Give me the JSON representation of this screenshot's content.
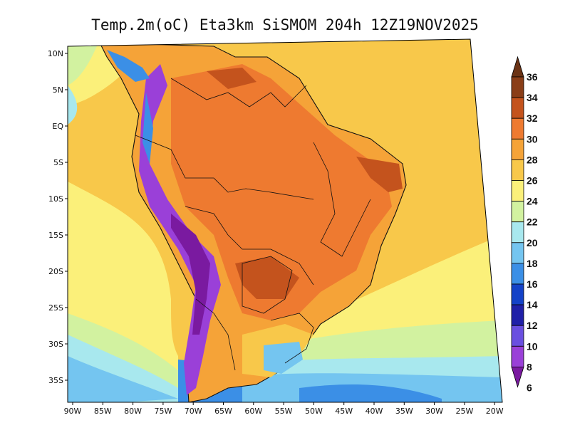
{
  "title": "Temp.2m(oC) Eta3km SiSMOM 204h 12Z19NOV2025",
  "variable": "Temp.2m",
  "units": "oC",
  "model": "Eta3km SiSMOM",
  "forecast_hour": "204h",
  "valid_time": "12Z19NOV2025",
  "lon_ticks": [
    "90W",
    "85W",
    "80W",
    "75W",
    "70W",
    "65W",
    "60W",
    "55W",
    "50W",
    "45W",
    "40W",
    "35W",
    "30W",
    "25W",
    "20W"
  ],
  "lat_ticks": [
    "10N",
    "5N",
    "EQ",
    "5S",
    "10S",
    "15S",
    "20S",
    "25S",
    "30S",
    "35S"
  ],
  "colorbar": {
    "labels": [
      "36",
      "34",
      "32",
      "30",
      "28",
      "26",
      "24",
      "22",
      "20",
      "18",
      "16",
      "14",
      "12",
      "10",
      "8",
      "6"
    ],
    "colors": [
      "#6b3315",
      "#8a3e18",
      "#c4531d",
      "#ee7a30",
      "#f5a338",
      "#f8c84a",
      "#fbf07a",
      "#d2f2a0",
      "#a8e8ee",
      "#74c5f0",
      "#3b8fe6",
      "#1442c8",
      "#2020a8",
      "#6a4fe0",
      "#9a40d8",
      "#7a1aa0"
    ]
  },
  "colors": {
    "ocean_tropical": "#f8c84a",
    "ocean_subtropical": "#fbf07a",
    "land_hot": "#ee7a30",
    "andes_cold": "#7a1aa0"
  }
}
